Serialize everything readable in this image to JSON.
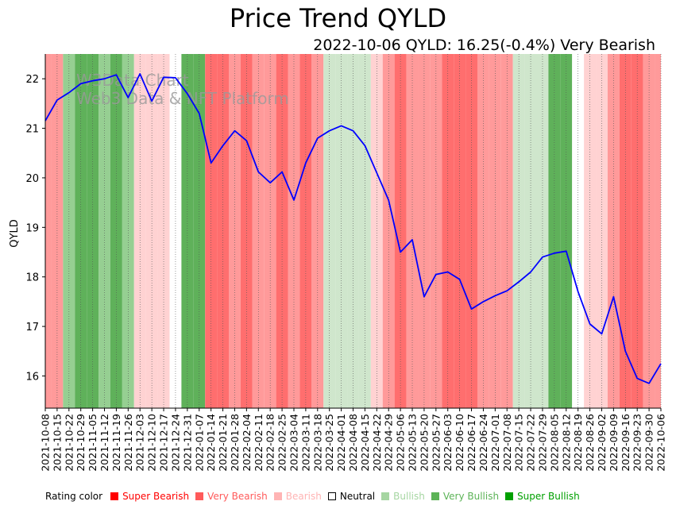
{
  "chart_data": {
    "type": "line",
    "title": "Price Trend QYLD",
    "subtitle": "2022-10-06 QYLD: 16.25(-0.4%) Very Bearish",
    "ylabel": "QYLD",
    "xlabel": "",
    "ylim": [
      15.35,
      22.5
    ],
    "yticks": [
      16,
      17,
      18,
      19,
      20,
      21,
      22
    ],
    "x_dates": [
      "2021-10-08",
      "2021-10-15",
      "2021-10-22",
      "2021-10-29",
      "2021-11-05",
      "2021-11-12",
      "2021-11-19",
      "2021-11-26",
      "2021-12-03",
      "2021-12-10",
      "2021-12-17",
      "2021-12-24",
      "2021-12-31",
      "2022-01-07",
      "2022-01-14",
      "2022-01-21",
      "2022-01-28",
      "2022-02-04",
      "2022-02-11",
      "2022-02-18",
      "2022-02-25",
      "2022-03-04",
      "2022-03-11",
      "2022-03-18",
      "2022-03-25",
      "2022-04-01",
      "2022-04-08",
      "2022-04-15",
      "2022-04-22",
      "2022-04-29",
      "2022-05-06",
      "2022-05-13",
      "2022-05-20",
      "2022-05-27",
      "2022-06-03",
      "2022-06-10",
      "2022-06-17",
      "2022-06-24",
      "2022-07-01",
      "2022-07-08",
      "2022-07-15",
      "2022-07-22",
      "2022-07-29",
      "2022-08-05",
      "2022-08-12",
      "2022-08-19",
      "2022-08-26",
      "2022-09-02",
      "2022-09-09",
      "2022-09-16",
      "2022-09-23",
      "2022-09-30",
      "2022-10-06"
    ],
    "series": [
      {
        "name": "QYLD",
        "color": "#0000ff",
        "values": [
          21.15,
          21.57,
          21.72,
          21.9,
          21.96,
          22.0,
          22.08,
          21.62,
          22.1,
          21.55,
          22.03,
          22.02,
          21.7,
          21.3,
          20.3,
          20.65,
          20.95,
          20.75,
          20.12,
          19.9,
          20.12,
          19.55,
          20.3,
          20.8,
          20.95,
          21.05,
          20.95,
          20.65,
          20.1,
          19.55,
          18.5,
          18.75,
          17.6,
          18.05,
          18.1,
          17.95,
          17.35,
          17.5,
          17.62,
          17.72,
          17.9,
          18.1,
          18.4,
          18.48,
          18.52,
          17.7,
          17.05,
          16.85,
          17.6,
          16.5,
          15.95,
          15.85,
          16.25
        ]
      }
    ],
    "rating_bands": [
      "VB",
      "VB",
      "VBu",
      "SBu",
      "SBu",
      "VBu",
      "SBu",
      "VBu",
      "B",
      "B",
      "B",
      "N",
      "SBu",
      "SBu",
      "SBe",
      "SBe",
      "VB",
      "SBe",
      "VB",
      "VB",
      "SBe",
      "VB",
      "SBe",
      "VB",
      "Bu",
      "Bu",
      "Bu",
      "Bu",
      "B",
      "VB",
      "SBe",
      "VB",
      "VB",
      "VB",
      "SBe",
      "SBe",
      "SBe",
      "VB",
      "VB",
      "VB",
      "Bu",
      "Bu",
      "Bu",
      "SBu",
      "SBu",
      "N",
      "B",
      "B",
      "VB",
      "SBe",
      "SBe",
      "VB",
      "VB"
    ],
    "rating_colors": {
      "SBe": "#ff6e6e",
      "VB": "#ff9a9a",
      "B": "#ffd2d2",
      "N": "#ffffff",
      "Bu": "#cfe6cc",
      "VBu": "#96cf92",
      "SBu": "#5fb15a"
    }
  },
  "watermark": {
    "line1": "W3Data Chart",
    "line2": "Web3 Data & NFT Platform"
  },
  "legend": {
    "title": "Rating color",
    "items": [
      {
        "label": "Super Bearish",
        "color": "#ff0000"
      },
      {
        "label": "Very Bearish",
        "color": "#ff5a5a"
      },
      {
        "label": "Bearish",
        "color": "#ffb4b4"
      },
      {
        "label": "Neutral",
        "color": "#000000",
        "hollow": true
      },
      {
        "label": "Bullish",
        "color": "#a6d6a2"
      },
      {
        "label": "Very Bullish",
        "color": "#5cb357"
      },
      {
        "label": "Super Bullish",
        "color": "#00a000"
      }
    ]
  }
}
